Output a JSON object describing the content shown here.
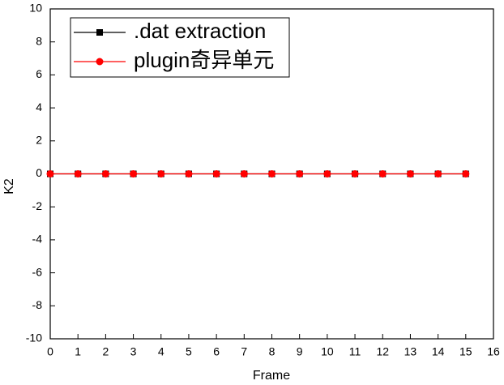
{
  "chart_data": {
    "type": "line",
    "x_label": "Frame",
    "y_label": "K2",
    "x": [
      0,
      1,
      2,
      3,
      4,
      5,
      6,
      7,
      8,
      9,
      10,
      11,
      12,
      13,
      14,
      15
    ],
    "series": [
      {
        "name": ".dat extraction",
        "color": "#000000",
        "marker": "square",
        "values": [
          0,
          0,
          0,
          0,
          0,
          0,
          0,
          0,
          0,
          0,
          0,
          0,
          0,
          0,
          0,
          0
        ]
      },
      {
        "name": "plugin奇异单元",
        "color": "#ff0000",
        "marker": "circle",
        "values": [
          0,
          0,
          0,
          0,
          0,
          0,
          0,
          0,
          0,
          0,
          0,
          0,
          0,
          0,
          0,
          0
        ]
      }
    ],
    "xlim": [
      0,
      16
    ],
    "xticks": [
      0,
      1,
      2,
      3,
      4,
      5,
      6,
      7,
      8,
      9,
      10,
      11,
      12,
      13,
      14,
      15,
      16
    ],
    "ylim": [
      -10,
      10
    ],
    "yticks": [
      -10,
      -8,
      -6,
      -4,
      -2,
      0,
      2,
      4,
      6,
      8,
      10
    ],
    "legend": "upper left"
  }
}
